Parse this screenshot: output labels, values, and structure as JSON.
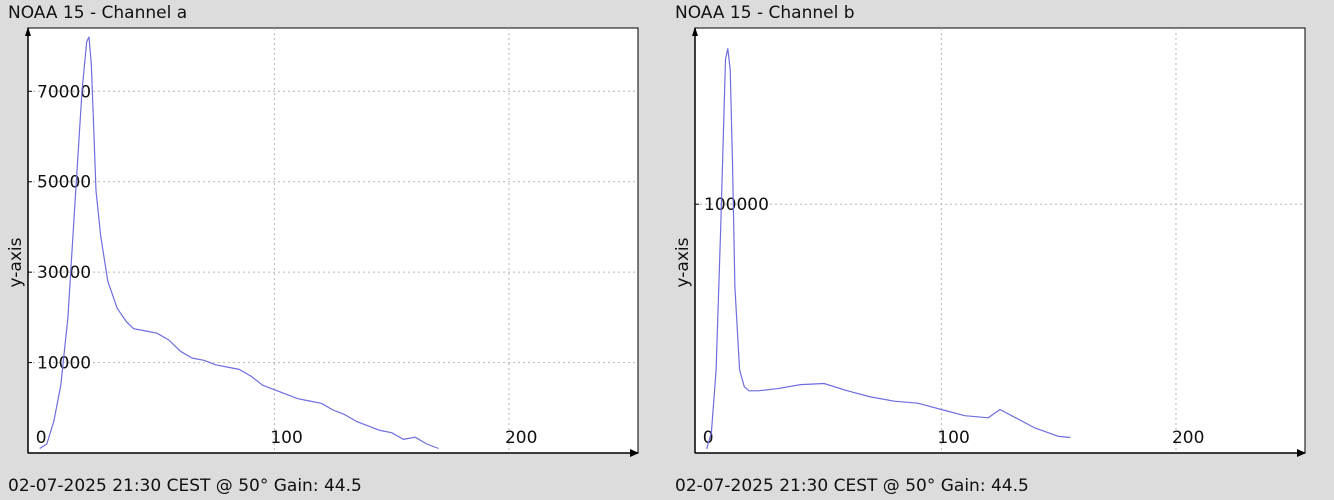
{
  "chart_data": [
    {
      "type": "line",
      "title": "NOAA 15 - Channel a",
      "footer": "02-07-2025 21:30 CEST @ 50° Gain: 44.5",
      "ylabel": "y-axis",
      "xlabel": "",
      "xlim": [
        -5,
        255
      ],
      "ylim": [
        -10000,
        84000
      ],
      "xticks": [
        0,
        100,
        200
      ],
      "xtick_labels": [
        "0",
        "100",
        "200"
      ],
      "yticks": [
        10000,
        30000,
        50000,
        70000
      ],
      "ytick_labels": [
        "10000",
        "30000",
        "50000",
        "70000"
      ],
      "grid": true,
      "line_color": "#6d6ee0",
      "series": [
        {
          "x": [
            0,
            3,
            6,
            9,
            12,
            15,
            18,
            20,
            21,
            22,
            23,
            24,
            26,
            29,
            33,
            37,
            40,
            45,
            50,
            55,
            60,
            65,
            70,
            75,
            80,
            85,
            90,
            95,
            100,
            105,
            110,
            115,
            120,
            125,
            130,
            135,
            140,
            145,
            150,
            155,
            160,
            165,
            170
          ],
          "y": [
            -9000,
            -8000,
            -3000,
            5000,
            20000,
            45000,
            70000,
            81000,
            82000,
            76000,
            62000,
            48000,
            38000,
            28000,
            22000,
            19000,
            17500,
            17000,
            16500,
            15000,
            12500,
            11000,
            10500,
            9500,
            9000,
            8500,
            7000,
            5000,
            4000,
            3000,
            2000,
            1500,
            1000,
            -500,
            -1500,
            -3000,
            -4000,
            -5000,
            -5500,
            -7000,
            -6500,
            -8000,
            -9000
          ]
        }
      ]
    },
    {
      "type": "line",
      "title": "NOAA 15 - Channel b",
      "footer": "02-07-2025 21:30 CEST @ 50° Gain: 44.5",
      "ylabel": "y-axis",
      "xlabel": "",
      "xlim": [
        -5,
        255
      ],
      "ylim": [
        -20000,
        185000
      ],
      "xticks": [
        0,
        100,
        200
      ],
      "xtick_labels": [
        "0",
        "100",
        "200"
      ],
      "yticks": [
        100000
      ],
      "ytick_labels": [
        "100000"
      ],
      "grid": true,
      "line_color": "#6d6ee0",
      "series": [
        {
          "x": [
            0,
            2,
            4,
            6,
            8,
            9,
            10,
            11,
            12,
            14,
            16,
            18,
            22,
            30,
            40,
            50,
            60,
            70,
            80,
            90,
            100,
            110,
            120,
            125,
            130,
            140,
            150,
            155
          ],
          "y": [
            -18000,
            -10000,
            20000,
            90000,
            170000,
            175000,
            165000,
            120000,
            60000,
            20000,
            12000,
            10000,
            10000,
            11000,
            13000,
            13500,
            10000,
            7000,
            5000,
            4000,
            1000,
            -2000,
            -3000,
            1000,
            -2000,
            -8000,
            -12000,
            -12500
          ]
        }
      ]
    }
  ]
}
